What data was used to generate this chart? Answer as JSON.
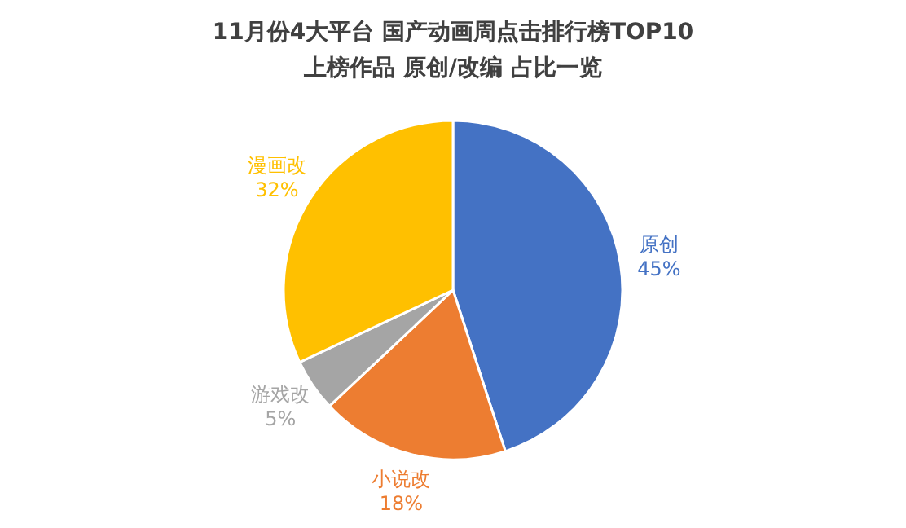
{
  "chart_data": {
    "type": "pie",
    "title": "11月份4大平台 国产动画周点击排行榜TOP10",
    "subtitle": "上榜作品 原创/改编 占比一览",
    "categories": [
      "原创",
      "小说改",
      "游戏改",
      "漫画改"
    ],
    "values": [
      45,
      18,
      5,
      32
    ],
    "value_labels": [
      "45%",
      "18%",
      "5%",
      "32%"
    ],
    "colors": [
      "#4472c4",
      "#ed7d31",
      "#a5a5a5",
      "#ffc000"
    ]
  }
}
